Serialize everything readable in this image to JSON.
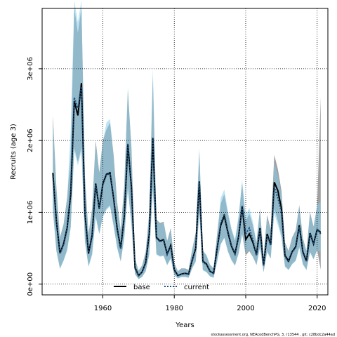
{
  "chart_data": {
    "type": "line",
    "xlabel": "Years",
    "ylabel": "Recruits (age 3)",
    "xlim": [
      1943,
      2023
    ],
    "ylim": [
      -150000,
      3840000
    ],
    "x_ticks": [
      1960,
      1980,
      2000,
      2020
    ],
    "y_ticks": [
      {
        "value": 0,
        "label": "0e+00"
      },
      {
        "value": 1000000,
        "label": "1e+06"
      },
      {
        "value": 2000000,
        "label": "2e+06"
      },
      {
        "value": 3000000,
        "label": "3e+06"
      }
    ],
    "grid": true,
    "legend": {
      "placement": "bottom-left"
    },
    "x": [
      1946,
      1947,
      1948,
      1949,
      1950,
      1951,
      1952,
      1953,
      1954,
      1955,
      1956,
      1957,
      1958,
      1959,
      1960,
      1961,
      1962,
      1963,
      1964,
      1965,
      1966,
      1967,
      1968,
      1969,
      1970,
      1971,
      1972,
      1973,
      1974,
      1975,
      1976,
      1977,
      1978,
      1979,
      1980,
      1981,
      1982,
      1983,
      1984,
      1985,
      1986,
      1987,
      1988,
      1989,
      1990,
      1991,
      1992,
      1993,
      1994,
      1995,
      1996,
      1997,
      1998,
      1999,
      2000,
      2001,
      2002,
      2003,
      2004,
      2005,
      2006,
      2007,
      2008,
      2009,
      2010,
      2011,
      2012,
      2013,
      2014,
      2015,
      2016,
      2017,
      2018,
      2019,
      2020,
      2021
    ],
    "series": [
      {
        "name": "base",
        "color": "#000000",
        "band_color": "#808080",
        "values": [
          1550000,
          880000,
          430000,
          560000,
          780000,
          1250000,
          2550000,
          2350000,
          2800000,
          980000,
          430000,
          680000,
          1400000,
          1050000,
          1400000,
          1530000,
          1550000,
          1200000,
          780000,
          500000,
          940000,
          1950000,
          1350000,
          230000,
          120000,
          170000,
          300000,
          700000,
          2030000,
          650000,
          600000,
          620000,
          420000,
          540000,
          200000,
          120000,
          140000,
          150000,
          140000,
          330000,
          500000,
          1430000,
          320000,
          280000,
          180000,
          150000,
          500000,
          820000,
          950000,
          720000,
          530000,
          420000,
          660000,
          1080000,
          620000,
          700000,
          580000,
          410000,
          780000,
          260000,
          700000,
          550000,
          1420000,
          1300000,
          1050000,
          400000,
          320000,
          450000,
          520000,
          820000,
          450000,
          320000,
          710000,
          560000,
          760000,
          720000
        ],
        "lower": [
          1050000,
          470000,
          220000,
          330000,
          480000,
          800000,
          1900000,
          1700000,
          1900000,
          600000,
          250000,
          420000,
          950000,
          700000,
          950000,
          1050000,
          1100000,
          820000,
          520000,
          320000,
          650000,
          1350000,
          850000,
          140000,
          70000,
          100000,
          180000,
          420000,
          1350000,
          420000,
          390000,
          400000,
          270000,
          360000,
          130000,
          80000,
          100000,
          100000,
          90000,
          220000,
          320000,
          1000000,
          200000,
          170000,
          110000,
          90000,
          320000,
          560000,
          650000,
          460000,
          340000,
          260000,
          430000,
          700000,
          400000,
          460000,
          380000,
          270000,
          520000,
          170000,
          460000,
          360000,
          1050000,
          880000,
          680000,
          250000,
          200000,
          280000,
          330000,
          520000,
          280000,
          200000,
          450000,
          350000,
          480000,
          200000
        ],
        "upper": [
          2350000,
          1350000,
          650000,
          830000,
          1200000,
          1800000,
          3850000,
          3500000,
          3850000,
          1500000,
          700000,
          1050000,
          2000000,
          1550000,
          2000000,
          2150000,
          2250000,
          1800000,
          1150000,
          750000,
          1380000,
          2700000,
          1900000,
          350000,
          190000,
          260000,
          450000,
          1000000,
          2900000,
          900000,
          850000,
          870000,
          600000,
          780000,
          300000,
          180000,
          220000,
          220000,
          200000,
          480000,
          720000,
          1850000,
          460000,
          400000,
          270000,
          220000,
          700000,
          1120000,
          1250000,
          980000,
          760000,
          600000,
          920000,
          1400000,
          880000,
          980000,
          820000,
          580000,
          1050000,
          380000,
          960000,
          760000,
          1800000,
          1600000,
          1300000,
          580000,
          460000,
          650000,
          750000,
          1100000,
          640000,
          460000,
          1000000,
          800000,
          1080000,
          2600000
        ]
      },
      {
        "name": "current",
        "color": "#1c4f7c",
        "band_color": "#87ceeb",
        "values": [
          1500000,
          860000,
          420000,
          550000,
          760000,
          1300000,
          2600000,
          2450000,
          2750000,
          960000,
          420000,
          660000,
          1380000,
          1060000,
          1380000,
          1520000,
          1540000,
          1180000,
          760000,
          490000,
          920000,
          1960000,
          1320000,
          220000,
          115000,
          165000,
          290000,
          690000,
          2040000,
          640000,
          590000,
          610000,
          410000,
          530000,
          195000,
          118000,
          138000,
          148000,
          138000,
          325000,
          490000,
          1420000,
          310000,
          270000,
          175000,
          148000,
          490000,
          850000,
          980000,
          740000,
          540000,
          430000,
          670000,
          1100000,
          700000,
          780000,
          620000,
          400000,
          760000,
          255000,
          680000,
          540000,
          1350000,
          1200000,
          1000000,
          380000,
          310000,
          440000,
          510000,
          800000,
          440000,
          310000,
          700000,
          550000,
          760000,
          700000
        ],
        "lower": [
          1000000,
          460000,
          210000,
          320000,
          460000,
          780000,
          1850000,
          1650000,
          1850000,
          580000,
          240000,
          400000,
          920000,
          700000,
          930000,
          1030000,
          1080000,
          800000,
          500000,
          310000,
          630000,
          1300000,
          820000,
          135000,
          68000,
          98000,
          175000,
          410000,
          1300000,
          410000,
          380000,
          390000,
          260000,
          350000,
          125000,
          78000,
          98000,
          98000,
          88000,
          215000,
          310000,
          980000,
          190000,
          165000,
          105000,
          88000,
          310000,
          550000,
          640000,
          450000,
          330000,
          255000,
          420000,
          700000,
          420000,
          480000,
          390000,
          260000,
          500000,
          165000,
          440000,
          350000,
          980000,
          820000,
          640000,
          240000,
          195000,
          275000,
          320000,
          500000,
          270000,
          195000,
          440000,
          340000,
          470000,
          450000
        ],
        "upper": [
          2300000,
          1320000,
          640000,
          820000,
          1180000,
          2150000,
          3950000,
          3650000,
          3950000,
          1480000,
          690000,
          1030000,
          1970000,
          1540000,
          1980000,
          2250000,
          2300000,
          1780000,
          1130000,
          740000,
          1350000,
          2750000,
          1870000,
          345000,
          185000,
          255000,
          440000,
          980000,
          3000000,
          890000,
          840000,
          860000,
          590000,
          770000,
          295000,
          178000,
          215000,
          218000,
          198000,
          470000,
          710000,
          1900000,
          470000,
          410000,
          275000,
          225000,
          700000,
          1200000,
          1320000,
          1020000,
          780000,
          620000,
          950000,
          1450000,
          960000,
          1060000,
          870000,
          580000,
          1030000,
          375000,
          930000,
          740000,
          1700000,
          1520000,
          1250000,
          560000,
          450000,
          640000,
          740000,
          1080000,
          630000,
          450000,
          990000,
          790000,
          1100000,
          1150000
        ]
      }
    ],
    "footnote": "stockassessment.org, NEAcodBenchPG, 3, r13544 , git: c28bdc2a44ad"
  }
}
